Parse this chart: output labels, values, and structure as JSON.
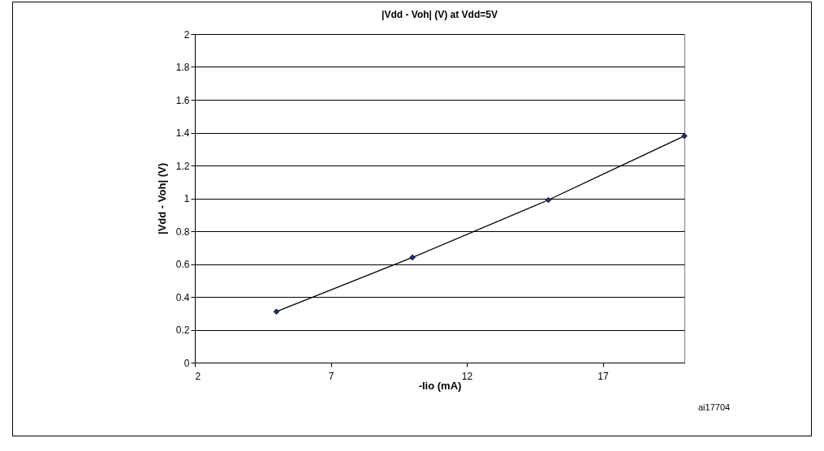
{
  "chart_data": {
    "type": "line",
    "title": "|Vdd - Voh| (V) at Vdd=5V",
    "xlabel": "-Iio (mA)",
    "ylabel": "|Vdd - Voh| (V)",
    "x": [
      5,
      10,
      15,
      20
    ],
    "series": [
      {
        "color": "#26307a",
        "values": [
          0.31,
          0.64,
          0.99,
          1.38
        ]
      }
    ],
    "xlim": [
      2,
      20
    ],
    "xticks": [
      2,
      7,
      12,
      17
    ],
    "ylim": [
      0,
      2
    ],
    "yticks": [
      0,
      0.2,
      0.4,
      0.6,
      0.8,
      1,
      1.2,
      1.4,
      1.6,
      1.8,
      2
    ],
    "grid": "y",
    "legend": false,
    "marker": "diamond",
    "line_style": "solid",
    "annotations": [
      "ai17704"
    ]
  }
}
